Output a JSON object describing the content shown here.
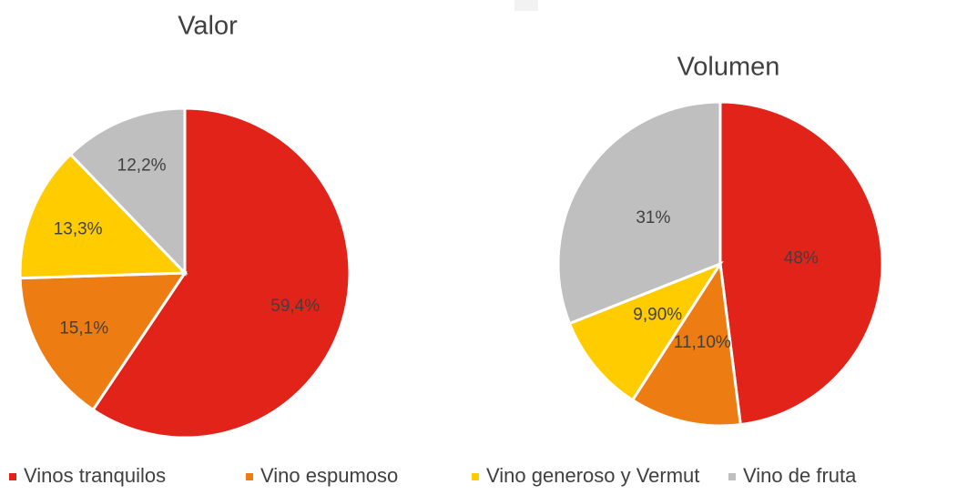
{
  "legend": {
    "labels": [
      "Vinos tranquilos",
      "Vino espumoso",
      "Vino generoso y Vermut",
      "Vino de fruta"
    ],
    "colors": [
      "#e2231a",
      "#ed7d12",
      "#ffcc00",
      "#c0bfbf"
    ]
  },
  "chart_data": [
    {
      "type": "pie",
      "title": "Valor",
      "values": [
        59.4,
        15.1,
        13.3,
        12.2
      ],
      "value_labels": [
        "59,4%",
        "15,1%",
        "13,3%",
        "12,2%"
      ]
    },
    {
      "type": "pie",
      "title": "Volumen",
      "values": [
        48,
        11.1,
        9.9,
        31
      ],
      "value_labels": [
        "48%",
        "11,10%",
        "9,90%",
        "31%"
      ]
    }
  ]
}
